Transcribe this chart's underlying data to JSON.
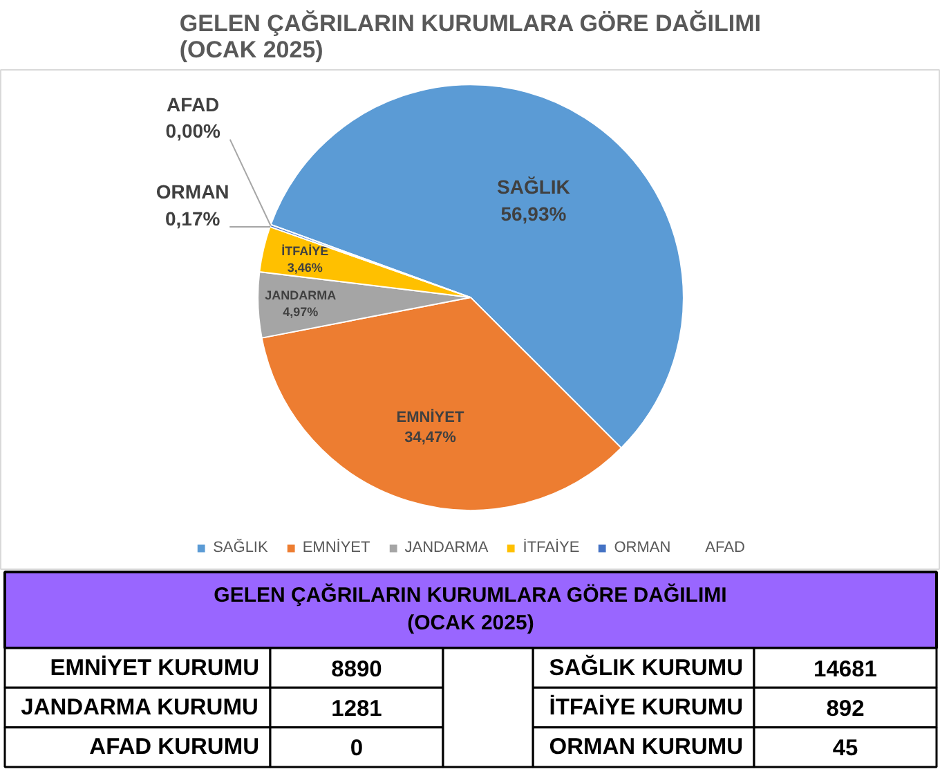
{
  "chart_data": [
    {
      "type": "pie",
      "title": "GELEN ÇAĞRILARIN KURUMLARA GÖRE DAĞILIMI\n(OCAK 2025)",
      "categories": [
        "SAĞLIK",
        "EMNİYET",
        "JANDARMA",
        "İTFAİYE",
        "ORMAN",
        "AFAD"
      ],
      "values": [
        56.93,
        34.47,
        4.97,
        3.46,
        0.17,
        0.0
      ],
      "value_labels": [
        "56,93%",
        "34,47%",
        "4,97%",
        "3,46%",
        "0,17%",
        "0,00%"
      ],
      "colors": [
        "#5b9bd5",
        "#ed7d31",
        "#a5a5a5",
        "#ffc000",
        "#4472c4",
        "#70ad47"
      ],
      "legend": "bottom"
    },
    {
      "type": "other",
      "title": "GELEN ÇAĞRILARIN KURUMLARA GÖRE DAĞILIMI\n(OCAK 2025)",
      "categories": [
        "EMNİYET KURUMU",
        "JANDARMA KURUMU",
        "AFAD KURUMU",
        "SAĞLIK KURUMU",
        "İTFAİYE KURUMU",
        "ORMAN KURUMU"
      ],
      "values": [
        8890,
        1281,
        0,
        14681,
        892,
        45
      ],
      "data_labels": true
    }
  ]
}
